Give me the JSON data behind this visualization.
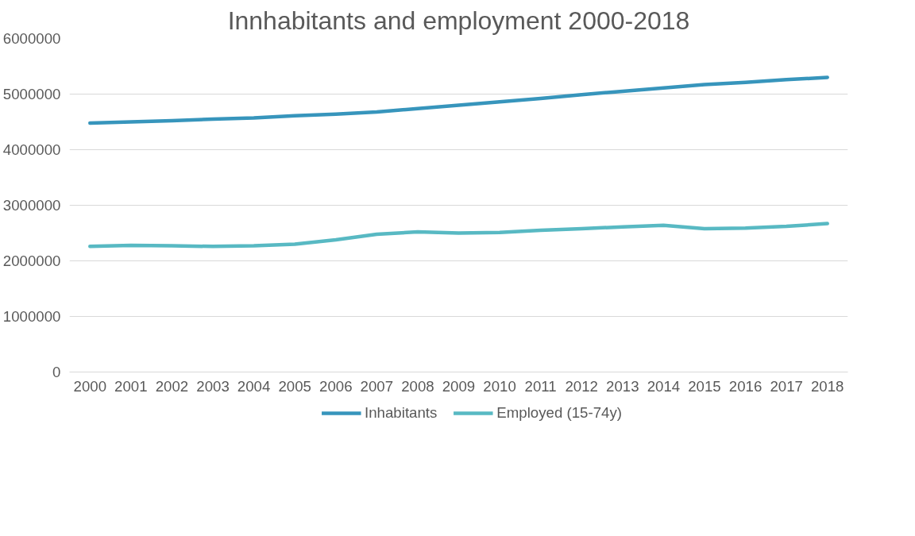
{
  "chart_data": {
    "type": "line",
    "title": "Innhabitants and employment 2000-2018",
    "categories": [
      "2000",
      "2001",
      "2002",
      "2003",
      "2004",
      "2005",
      "2006",
      "2007",
      "2008",
      "2009",
      "2010",
      "2011",
      "2012",
      "2013",
      "2014",
      "2015",
      "2016",
      "2017",
      "2018"
    ],
    "series": [
      {
        "name": "Inhabitants",
        "color": "#3795bc",
        "values": [
          4480000,
          4500000,
          4520000,
          4550000,
          4570000,
          4610000,
          4640000,
          4680000,
          4740000,
          4800000,
          4860000,
          4920000,
          4990000,
          5050000,
          5110000,
          5170000,
          5210000,
          5260000,
          5300000
        ]
      },
      {
        "name": "Employed (15-74y)",
        "color": "#58b9c3",
        "values": [
          2260000,
          2280000,
          2270000,
          2260000,
          2270000,
          2300000,
          2380000,
          2480000,
          2520000,
          2500000,
          2510000,
          2550000,
          2580000,
          2610000,
          2640000,
          2580000,
          2590000,
          2620000,
          2670000
        ]
      }
    ],
    "ylim": [
      0,
      6000000
    ],
    "yticks": [
      0,
      1000000,
      2000000,
      3000000,
      4000000,
      5000000,
      6000000
    ],
    "grid": "y",
    "legend": "bottom",
    "marker": "none",
    "line_style": "solid"
  }
}
